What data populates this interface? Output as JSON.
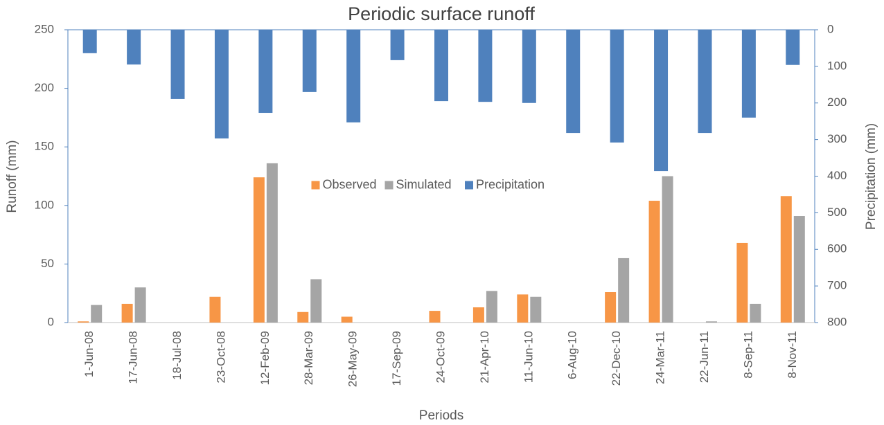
{
  "chart_data": {
    "type": "bar",
    "title": "Periodic surface runoff",
    "x_label": "Periods",
    "y_label": "Runoff (mm)",
    "y2_label": "Precipitation (mm)",
    "categories": [
      "1-Jun-08",
      "17-Jun-08",
      "18-Jul-08",
      "23-Oct-08",
      "12-Feb-09",
      "28-Mar-09",
      "26-May-09",
      "17-Sep-09",
      "24-Oct-09",
      "21-Apr-10",
      "11-Jun-10",
      "6-Aug-10",
      "22-Dec-10",
      "24-Mar-11",
      "22-Jun-11",
      "8-Sep-11",
      "8-Nov-11"
    ],
    "series": [
      {
        "name": "Observed",
        "color": "#f79646",
        "values": [
          1,
          16,
          0,
          22,
          124,
          9,
          5,
          0,
          10,
          13,
          24,
          0,
          26,
          104,
          0,
          68,
          108
        ]
      },
      {
        "name": "Simulated",
        "color": "#a5a5a5",
        "values": [
          15,
          30,
          0,
          0,
          136,
          37,
          0,
          0,
          0,
          27,
          22,
          0,
          55,
          125,
          1,
          16,
          91
        ]
      },
      {
        "name": "Precipitation",
        "color": "#4f81bd",
        "axis": "y2",
        "values": [
          64,
          95,
          189,
          297,
          227,
          170,
          253,
          83,
          195,
          197,
          200,
          282,
          308,
          386,
          282,
          240,
          96
        ]
      }
    ],
    "ylim": [
      0,
      250
    ],
    "yticks": [
      0,
      50,
      100,
      150,
      200,
      250
    ],
    "y2lim": [
      0,
      800
    ],
    "y2ticks": [
      0,
      100,
      200,
      300,
      400,
      500,
      600,
      700,
      800
    ],
    "y2_reversed": true,
    "legend": "center"
  }
}
